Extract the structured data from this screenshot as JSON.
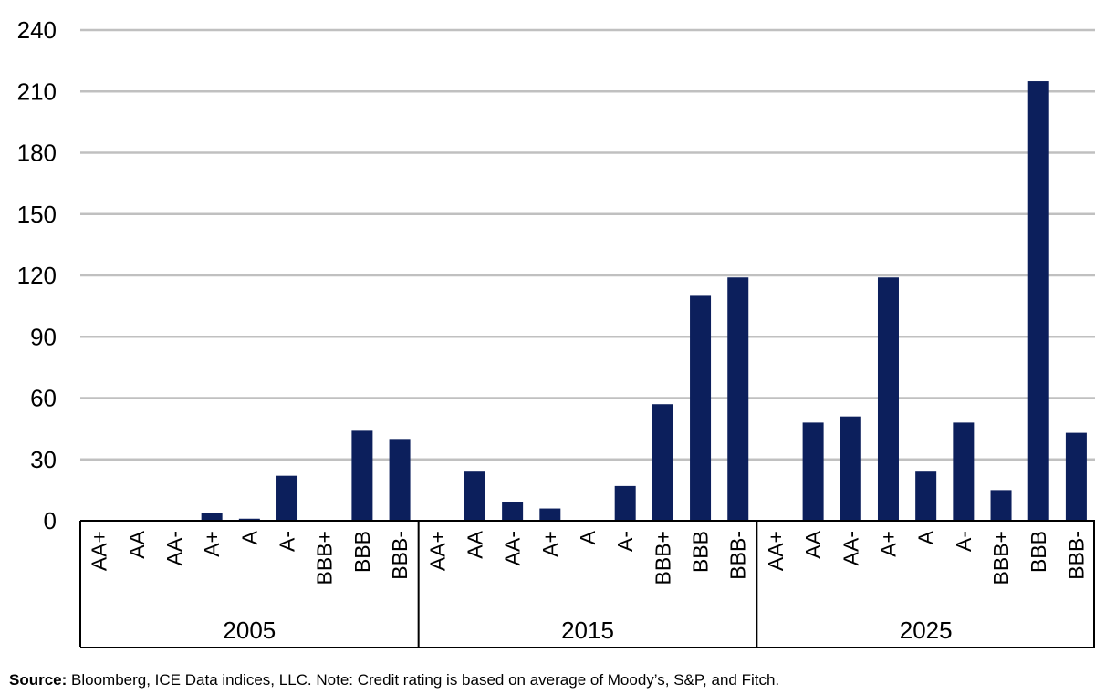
{
  "chart_data": {
    "type": "bar",
    "groups": [
      {
        "label": "2005",
        "categories": [
          "AA+",
          "AA",
          "AA-",
          "A+",
          "A",
          "A-",
          "BBB+",
          "BBB",
          "BBB-"
        ],
        "values": [
          0,
          0,
          0,
          4,
          1,
          22,
          0,
          44,
          40
        ]
      },
      {
        "label": "2015",
        "categories": [
          "AA+",
          "AA",
          "AA-",
          "A+",
          "A",
          "A-",
          "BBB+",
          "BBB",
          "BBB-"
        ],
        "values": [
          0,
          24,
          9,
          6,
          0,
          17,
          57,
          110,
          119
        ]
      },
      {
        "label": "2025",
        "categories": [
          "AA+",
          "AA",
          "AA-",
          "A+",
          "A",
          "A-",
          "BBB+",
          "BBB",
          "BBB-"
        ],
        "values": [
          0,
          48,
          51,
          119,
          24,
          48,
          15,
          215,
          43
        ]
      }
    ],
    "yticks": [
      0,
      30,
      60,
      90,
      120,
      150,
      180,
      210,
      240
    ],
    "ylim": [
      0,
      240
    ],
    "grid": true,
    "bar_color": "#0c1f5c",
    "grid_color": "#c0c0c0"
  },
  "footer": {
    "source_label": "Source:",
    "source_text": " Bloomberg, ICE Data indices, LLC. Note: Credit rating is based on average of Moody’s, S&P, and Fitch."
  }
}
